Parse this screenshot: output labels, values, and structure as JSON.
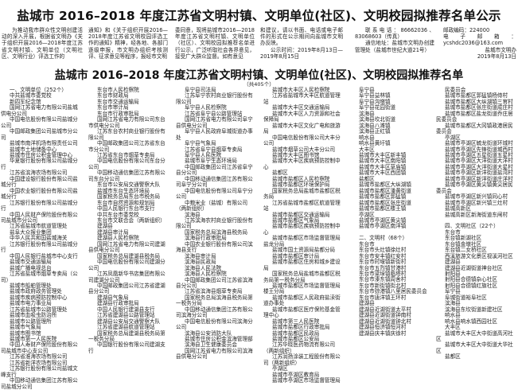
{
  "notice": {
    "title": "盐城市 2016–2018 年度江苏省文明村镇、文明单位(社区)、文明校园拟推荐名单公示",
    "intro": [
      [
        "为推动我市群众性文明创建活动的深入开展，根据省文明办《关于组织开展2016—2018年度江苏省文明村镇、文明单位（文明社区、文明行业）评选工作的"
      ],
      [
        "通知》和《关于组织开展2016—2018年度江苏省文明校园评选工作的通知》精神，经各地、各部门逐级申报，市文明办组织考核测评、征求意见等程序，报经市文明"
      ],
      [
        "委同意，现将盐城市2016—2018年度江苏省文明村镇、文明单位（社区）、文明校园拟推荐名单进行公示，广泛听取社会各界意见，接受广大群众监督。如有意见"
      ],
      [
        "和建议，请以书面、电话或电子邮件的形式在公示期间向盐城市文明办反映。",
        "公示时间：2019年8月13日—2019年8月15日"
      ],
      [
        "联系电话：86662036、83068603（传真）",
        "通信地址：盐城市文明办创建管理处（盐城市世纪大道21号）"
      ],
      [
        "邮政编码：224000",
        "电子邮箱：ycshdc2036@163.com",
        "盐城市文明办",
        "2019年8月13日"
      ]
    ]
  },
  "list": {
    "title": "盐城市 2016–2018 年度江苏省文明村镇、文明单位(社区)、文明校园拟推荐名单",
    "count": "（共405个）",
    "columns": [
      [
        "一、文明单位（252个）",
        "中共盐城市委党校",
        "新四军纪念馆",
        "国网江苏省电力有限公司盐城供电分公司",
        "中国电信股份有限公司盐城分公司",
        "中国邮政集团公司盐城市分公司",
        "盐城市南洋机场有限责任公司",
        "盐城市土地储备中心",
        "盐城市住房公积金管理中心",
        "华夏银行股份有限公司盐城分行",
        "江苏省滨海农场有限公司",
        "中国建设银行股份有限公司盐城分行",
        "中国农业银行股份有限公司盐城分行",
        "江苏银行股份有限公司盐城分行",
        "中国人民财产保险股份有限公司盐城市分公司",
        "江苏省盐城市航道管理处",
        "盐阜大众报业集团",
        "中华人民共和国盐城海关",
        "江苏银行股份有限公司盐城分行",
        "中国人民银行盐城市中心支行",
        "盐城市交通运输局",
        "盐城广播电视总台",
        "江苏省盐城市烟草专卖局（公司）",
        "盐城市船舶管理处",
        "盐城市政府政务管理处",
        "盐城市疾病预防控制中心",
        "盐城市电力事业局",
        "江苏省盐城市公路管理处",
        "盐城市血吸虫防治所",
        "盐城市公路管理所",
        "盐城市气象局",
        "盐城市图书馆",
        "盐城市第一人民医院",
        "中国人寿财产保险股份有限公司盐城市中心支公司",
        "江苏省淮海农场有限公司",
        "江苏省新洋农场有限公司",
        "江苏银行股份有限公司盐城文峰支行",
        "中国移动通信集团江苏有限公司盐城分公司"
      ],
      [
        "东台市人民检察院",
        "东台市财政局",
        "东台市交通运输局",
        "东台市审计局",
        "东台市行政审批局",
        "国网江苏省电力有限公司东台市供电分公司",
        "江苏东台农村商业银行股份有限公司",
        "中国邮政集团公司江苏省东台市分公司",
        "江苏省东台市烟草专卖局",
        "中国电信股份有限公司东台分公司",
        "中国移动通信集团江苏有限公司东台分公司",
        "东台市公安局交通警察大队",
        "盐城市东台生态环境局",
        "国家税务总局东台市税务局",
        "东台市自然资源和规划局",
        "中国人民银行东台市支行",
        "中共东台市委党校",
        "东台市文联合会（两新组织）",
        "建湖县",
        "建湖县审计局",
        "建湖县人民检察院",
        "国网江苏省电力有限公司建湖县供电分公司",
        "国家税务总局建湖县税务局",
        "中国电信股份有限公司建湖分公司",
        "江苏凤凰新华书店集团有限公司建湖分公司",
        "中国邮政集团公司江苏省建湖县分公司",
        "建湖县气象局",
        "建湖县行政审批局",
        "中国人民银行建湖县支行",
        "江苏省建湖县公路管理站",
        "建湖县公安局交通警察大队",
        "江苏省建湖县航道管理站",
        "国家税务总局建湖县税务局第一税务分局",
        "中国银行股份有限公司建湖支行"
      ],
      [
        "阜宁县司法局",
        "江苏阜宁农村商业银行股份有限公司",
        "阜宁县人民检察院",
        "江苏省阜宁县公路管理站",
        "国网江苏省电力有限公司阜宁县供电分公司",
        "阜宁县人民政府阜城街道办事处",
        "阜宁县气象局",
        "江苏省阜宁县烟草专卖局",
        "阜宁县人民医院",
        "盐城市阜宁生态环境局",
        "中国邮政集团公司江苏省阜宁县分公司",
        "中国移动通信集团江苏有限公司阜宁分公司",
        "中国电信股份有限公司阜宁分公司",
        "中粮米业（盐城）有限公司（两新组织）",
        "滨海县",
        "江苏滨海农村商业银行股份有限公司",
        "国家税务总局滨海县税务局",
        "滨海县行政审批局",
        "中国农业银行股份有限公司滨海县支行",
        "滨海县审计局",
        "滨海县民政局",
        "滨海县人民法院",
        "滨海县人民检察院",
        "中国邮政集团公司江苏省滨海县分公司",
        "江苏省滨海县烟草专卖局",
        "国家税务总局滨海县税务局第一税务分局",
        "中国移动通信集团江苏有限公司滨海分公司",
        "中国电信股份有限公司滨海分公司",
        "滨海县公安消防大队",
        "盐城市住房公积金滨海管理部",
        "滨海县卫生健康委员会",
        "国网江苏省电力有限公司滨海县供电分公司"
      ],
      [
        "盐城市大丰区人民检察院",
        "江苏省盐城市大丰区航道管理站",
        "盐城市大丰区交通运输局",
        "盐城市大丰区人力资源和社会保障局",
        "盐城市大丰区文化广电和旅游局",
        "中国电信股份有限公司大丰分公司",
        "盐城市烟草公司大丰分公司",
        "盐城市大丰区图书馆",
        "盐城市大丰区疾病预防控制中心",
        "盐都区",
        "盐城市盐都区人民检察院",
        "盐城市盐都区环境保护局",
        "国家税务总局盐城市盐都区税务局",
        "江苏省盐城市盐都区航道管理站",
        "盐城市盐都区交通运输局",
        "盐城市盐都区气象局",
        "盐城市盐都区疾病预防控制中心",
        "盐城市盐都区市场监督管理局盐龙分局",
        "盐城市国土资源局盐都分局",
        "盐城市盐都区审计局",
        "盐城市盐都区住房和城乡建设局",
        "国家税务总局盐城市盐都区税务局第一税务分局",
        "盐城市盐都区市场监督管理局楼王分局",
        "盐城市盐都区人民政府盐渎街道办事处",
        "盐城市盐都区医疗保险基金管理中心",
        "盐城市第三人民医院",
        "盐城市盐都区行政审批局",
        "盐城市盐都区民政局",
        "盐城市盐都区公安局",
        "江苏华晓医药物流有限公司（两新组织）",
        "江苏润扬涂装工程股份有限公司（两新组织）",
        "亭湖区",
        "盐城市亭湖区教育局",
        "盐城市亭湖区市场监督管理局"
      ],
      [
        "阜宁县",
        "阜宁县益林镇",
        "阜宁县沟墩镇",
        "阜宁县花园街道",
        "滨海县",
        "滨海县坎北街道",
        "滨海县八滩镇",
        "滨海县正红镇",
        "响水县",
        "响水县黄圩镇",
        "大丰区",
        "盐城市大丰区新丰镇",
        "盐城市大丰区南阳镇",
        "盐城市大丰区草庙镇",
        "盐城市大丰区西团镇",
        "盐都区",
        "盐城市盐都区大纵湖镇",
        "盐城市盐都区潘黄街道",
        "盐城市盐都区郭猛镇",
        "盐城市盐都区张庄街道",
        "盐城市盐都区楼王镇",
        "亭湖区",
        "盐城市亭湖区黄尖镇",
        "盐城市亭湖区南洋镇",
        "",
        "二、文明村（68个）",
        "东台市",
        "东台市头灶镇徐灶村",
        "东台市安丰镇红安村",
        "东台市时堰镇新街村",
        "东台市五烈镇甘港村",
        "东台市梁垛镇临塔村",
        "东台市溱东镇周舍村",
        "东台市新街镇街北村",
        "东台市弶港镇八里居民委员会",
        "东台市唐洋镇王环村",
        "建湖县",
        "建湖县近湖街道太平村",
        "建湖县近湖街道钟南村",
        "建湖县近湖街道钟北村",
        "建湖县恒济镇恒河村",
        "建湖县庆丰镇庆徐村"
      ],
      [
        "民委员会",
        "盐城市盐都区郭猛镇杨侍村",
        "盐城市盐都区大纵湖镇三官村",
        "盐城市盐都区张庄街道成庄村",
        "盐城市盐都区盐龙街道乔庄居民委员会",
        "盐城市盐都区大冈镇政港居民委员会",
        "亭湖区",
        "盐城市亭湖区毓龙街道环城村",
        "盐城市亭湖区先锋街道城西村",
        "盐城市亭湖区五星街道五星村",
        "盐城市亭湖区大洋街道大洋村",
        "盐城市亭湖区大洋街道大星村",
        "盐城市亭湖区新洋街道盐湾村",
        "盐城市亭湖区新洋街道庄洋村",
        "盐城市亭湖区黄尖镇黄尖居民委员会",
        "盐城市亭湖区新兴镇同心村",
        "盐城市亭湖区新兴镇三灶村",
        "盐城高新区",
        "盐城高新区新海街道东闸村",
        "",
        "四、文明社区（22个）",
        "东台市",
        "东台镇新湖社区",
        "东台镇金墩社区",
        "东台镇二女桥社区",
        "西溪旅游文化景区视溪河社区",
        "建湖县",
        "建湖县近湖街道神台社区",
        "射阳县",
        "射阳县合德镇杂心社区",
        "射阳县合德镇红旗社区",
        "阜宁县",
        "阜城街道裕阜社区",
        "滨海县",
        "滨海县东坎街道新建社区",
        "响水县",
        "响水县响水镇西园社区",
        "大丰区",
        "盐城市大丰区大中街道高河社区",
        "盐城市大丰区大中街道大华社区",
        "盐都区"
      ]
    ]
  }
}
